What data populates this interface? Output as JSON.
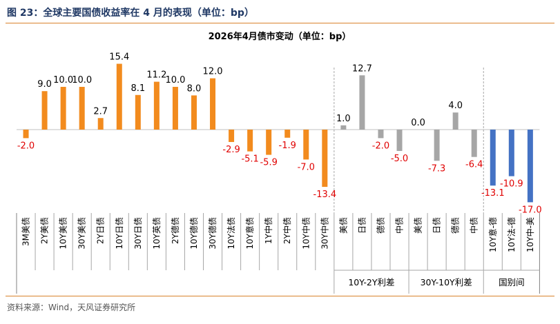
{
  "figure_title": "图 23：全球主要国债收益率在 4 月的表现（单位：bp）",
  "source": "资料来源：Wind，天风证券研究所",
  "chart_data": {
    "type": "bar",
    "title": "2026年4月债市变动（单位：bp）",
    "categories": [
      "3M美债",
      "2Y美债",
      "10Y美债",
      "30Y美债",
      "2Y日债",
      "10Y日债",
      "30Y日债",
      "10Y英债",
      "2Y德债",
      "10Y德债",
      "30Y德债",
      "10Y法债",
      "10Y意债",
      "1Y中债",
      "2Y中债",
      "10Y中债",
      "30Y中债",
      "美债",
      "日债",
      "德债",
      "中债",
      "美债",
      "日债",
      "德债",
      "中债",
      "10Y意-德",
      "10Y法-德",
      "10Y中-美"
    ],
    "values": [
      -2.0,
      9.0,
      10.0,
      10.0,
      2.7,
      15.4,
      8.1,
      11.2,
      10.0,
      8.0,
      12.0,
      -2.9,
      -5.1,
      -5.9,
      -1.9,
      -7.0,
      -13.4,
      1.0,
      12.7,
      -2.0,
      -5.0,
      0.0,
      -7.3,
      4.0,
      -6.4,
      -13.1,
      -10.9,
      -17.0
    ],
    "value_labels": [
      "-2.0",
      "9.0",
      "10.0",
      "10.0",
      "2.7",
      "15.4",
      "8.1",
      "11.2",
      "10.0",
      "8.0",
      "12.0",
      "-2.9",
      "-5.1",
      "-5.9",
      "-1.9",
      "-7.0",
      "-13.4",
      "1.0",
      "12.7",
      "-2.0",
      "-5.0",
      "0.0",
      "-7.3",
      "4.0",
      "-6.4",
      "-13.1",
      "-10.9",
      "-17.0"
    ],
    "groups": [
      {
        "label": "",
        "start": 0,
        "end": 16
      },
      {
        "label": "10Y-2Y利差",
        "start": 17,
        "end": 20
      },
      {
        "label": "30Y-10Y利差",
        "start": 21,
        "end": 24
      },
      {
        "label": "国别间",
        "start": 25,
        "end": 27
      }
    ],
    "ylim": [
      -17.0,
      15.4
    ],
    "colors": {
      "yield_bar": "#f28b1e",
      "spread_bar": "#a6a6a6",
      "country_bar": "#4472c4",
      "negative_label": "#e00000",
      "positive_label": "#000000"
    }
  }
}
